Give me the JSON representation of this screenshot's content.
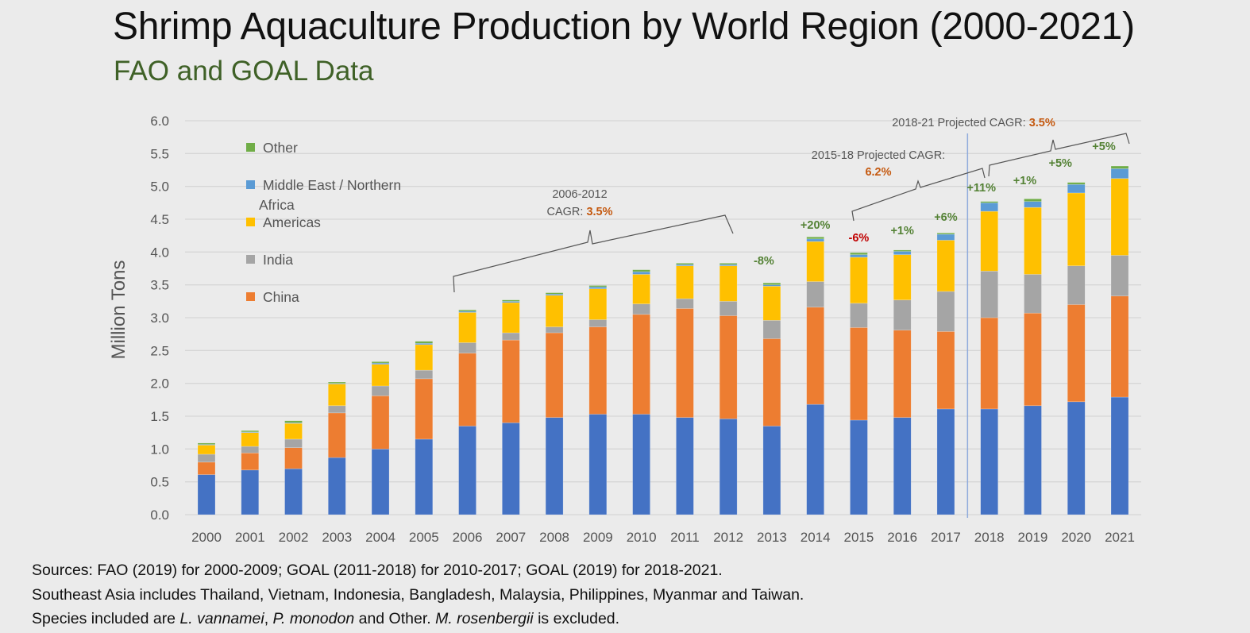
{
  "page": {
    "title": "Shrimp Aquaculture Production by World Region (2000-2021)",
    "subtitle": "FAO and GOAL Data",
    "notes": {
      "line1": "Sources:  FAO (2019) for 2000-2009; GOAL (2011-2018) for 2010-2017; GOAL (2019) for 2018-2021.",
      "line2": "Southeast Asia includes Thailand, Vietnam, Indonesia, Bangladesh, Malaysia, Philippines, Myanmar and Taiwan.",
      "line3_pre": "Species included are ",
      "line3_sp1": "L. vannamei",
      "line3_sep": ", ",
      "line3_sp2": "P. monodon",
      "line3_mid": " and Other.  ",
      "line3_sp3": "M. rosenbergii",
      "line3_post": " is excluded."
    }
  },
  "chart_data": {
    "type": "bar",
    "stacked": true,
    "title": "Shrimp Aquaculture Production by World Region (2000-2021)",
    "subtitle": "FAO and GOAL Data",
    "xlabel": "",
    "ylabel": "Million Tons",
    "ylim": [
      0,
      6.0
    ],
    "yticks": [
      "0.0",
      "0.5",
      "1.0",
      "1.5",
      "2.0",
      "2.5",
      "3.0",
      "3.5",
      "4.0",
      "4.5",
      "5.0",
      "5.5",
      "6.0"
    ],
    "grid": true,
    "legend_position": "top-left (inside plot)",
    "categories": [
      "2000",
      "2001",
      "2002",
      "2003",
      "2004",
      "2005",
      "2006",
      "2007",
      "2008",
      "2009",
      "2010",
      "2011",
      "2012",
      "2013",
      "2014",
      "2015",
      "2016",
      "2017",
      "2018",
      "2019",
      "2020",
      "2021"
    ],
    "series": [
      {
        "name": "Southeast Asia",
        "color": "#4472c4",
        "in_legend": false,
        "values": [
          0.61,
          0.68,
          0.7,
          0.87,
          1.0,
          1.15,
          1.35,
          1.4,
          1.48,
          1.53,
          1.53,
          1.48,
          1.46,
          1.35,
          1.68,
          1.44,
          1.48,
          1.61,
          1.61,
          1.66,
          1.72,
          1.79
        ]
      },
      {
        "name": "China",
        "color": "#ed7d31",
        "in_legend": true,
        "values": [
          0.19,
          0.26,
          0.32,
          0.68,
          0.81,
          0.92,
          1.11,
          1.26,
          1.29,
          1.33,
          1.52,
          1.66,
          1.57,
          1.33,
          1.48,
          1.41,
          1.33,
          1.18,
          1.39,
          1.41,
          1.48,
          1.54
        ]
      },
      {
        "name": "India",
        "color": "#a5a5a5",
        "in_legend": true,
        "values": [
          0.12,
          0.1,
          0.13,
          0.11,
          0.15,
          0.13,
          0.16,
          0.11,
          0.09,
          0.11,
          0.16,
          0.15,
          0.22,
          0.28,
          0.39,
          0.37,
          0.46,
          0.61,
          0.71,
          0.59,
          0.59,
          0.62
        ]
      },
      {
        "name": "Americas",
        "color": "#ffc000",
        "in_legend": true,
        "values": [
          0.14,
          0.21,
          0.24,
          0.33,
          0.33,
          0.39,
          0.46,
          0.46,
          0.48,
          0.47,
          0.45,
          0.5,
          0.54,
          0.52,
          0.61,
          0.7,
          0.69,
          0.78,
          0.91,
          1.02,
          1.11,
          1.17
        ]
      },
      {
        "name": "Middle East / Northern Africa",
        "color": "#5b9bd5",
        "in_legend": true,
        "values": [
          0.01,
          0.01,
          0.01,
          0.01,
          0.02,
          0.02,
          0.02,
          0.02,
          0.02,
          0.03,
          0.04,
          0.02,
          0.02,
          0.02,
          0.04,
          0.04,
          0.05,
          0.09,
          0.13,
          0.09,
          0.13,
          0.15
        ]
      },
      {
        "name": "Other",
        "color": "#70ad47",
        "in_legend": true,
        "values": [
          0.02,
          0.02,
          0.03,
          0.02,
          0.02,
          0.03,
          0.02,
          0.02,
          0.02,
          0.02,
          0.03,
          0.02,
          0.02,
          0.03,
          0.03,
          0.03,
          0.02,
          0.02,
          0.02,
          0.04,
          0.03,
          0.04
        ]
      }
    ],
    "legend": [
      "Other",
      "Middle East / Northern Africa",
      "Americas",
      "India",
      "China"
    ],
    "yoy_labels": [
      {
        "year": "2013",
        "text": "-8%",
        "color": "#548235"
      },
      {
        "year": "2014",
        "text": "+20%",
        "color": "#548235"
      },
      {
        "year": "2015",
        "text": "-6%",
        "color": "#c00000"
      },
      {
        "year": "2016",
        "text": "+1%",
        "color": "#548235"
      },
      {
        "year": "2017",
        "text": "+6%",
        "color": "#548235"
      },
      {
        "year": "2018",
        "text": "+11%",
        "color": "#548235"
      },
      {
        "year": "2019",
        "text": "+1%",
        "color": "#548235"
      },
      {
        "year": "2020",
        "text": "+5%",
        "color": "#548235"
      },
      {
        "year": "2021",
        "text": "+5%",
        "color": "#548235"
      }
    ],
    "annotations": {
      "cagr_2006_2012": {
        "line1": "2006-2012",
        "prefix": "CAGR: ",
        "value": "3.5%",
        "from": "2006",
        "to": "2012"
      },
      "cagr_2015_2018": {
        "line1": "2015-18 Projected CAGR:",
        "value": "6.2%",
        "from": "2015",
        "to": "2018"
      },
      "cagr_2018_2021": {
        "prefix": "2018-21 Projected CAGR: ",
        "value": "3.5%",
        "from": "2018",
        "to": "2021"
      },
      "value_color": "#c55a11",
      "projection_divider_between": [
        "2017",
        "2018"
      ]
    }
  }
}
